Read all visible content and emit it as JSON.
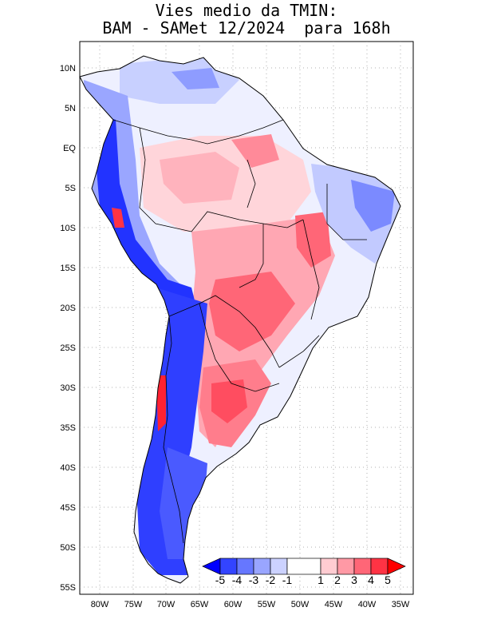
{
  "title": {
    "line1": "Vies medio da TMIN:",
    "line2": "BAM - SAMet 12/2024  para 168h"
  },
  "axes": {
    "lon_labels": [
      "80W",
      "75W",
      "70W",
      "65W",
      "60W",
      "55W",
      "50W",
      "45W",
      "40W",
      "35W"
    ],
    "lat_labels": [
      "10N",
      "5N",
      "EQ",
      "5S",
      "10S",
      "15S",
      "20S",
      "25S",
      "30S",
      "35S",
      "40S",
      "45S",
      "50S",
      "55S"
    ]
  },
  "colorbar": {
    "labels": [
      "-5",
      "-4",
      "-3",
      "-2",
      "-1",
      "1",
      "2",
      "3",
      "4",
      "5"
    ],
    "colors": [
      "#0000ff",
      "#3344ff",
      "#6677ff",
      "#99a5ff",
      "#ccd2ff",
      "#ffffff",
      "#ffccd2",
      "#ff99a5",
      "#ff6677",
      "#ff3344",
      "#ff0000"
    ]
  },
  "colors": {
    "land_base": "#e8ecff",
    "coastline": "#000000",
    "grid": "#999999"
  }
}
